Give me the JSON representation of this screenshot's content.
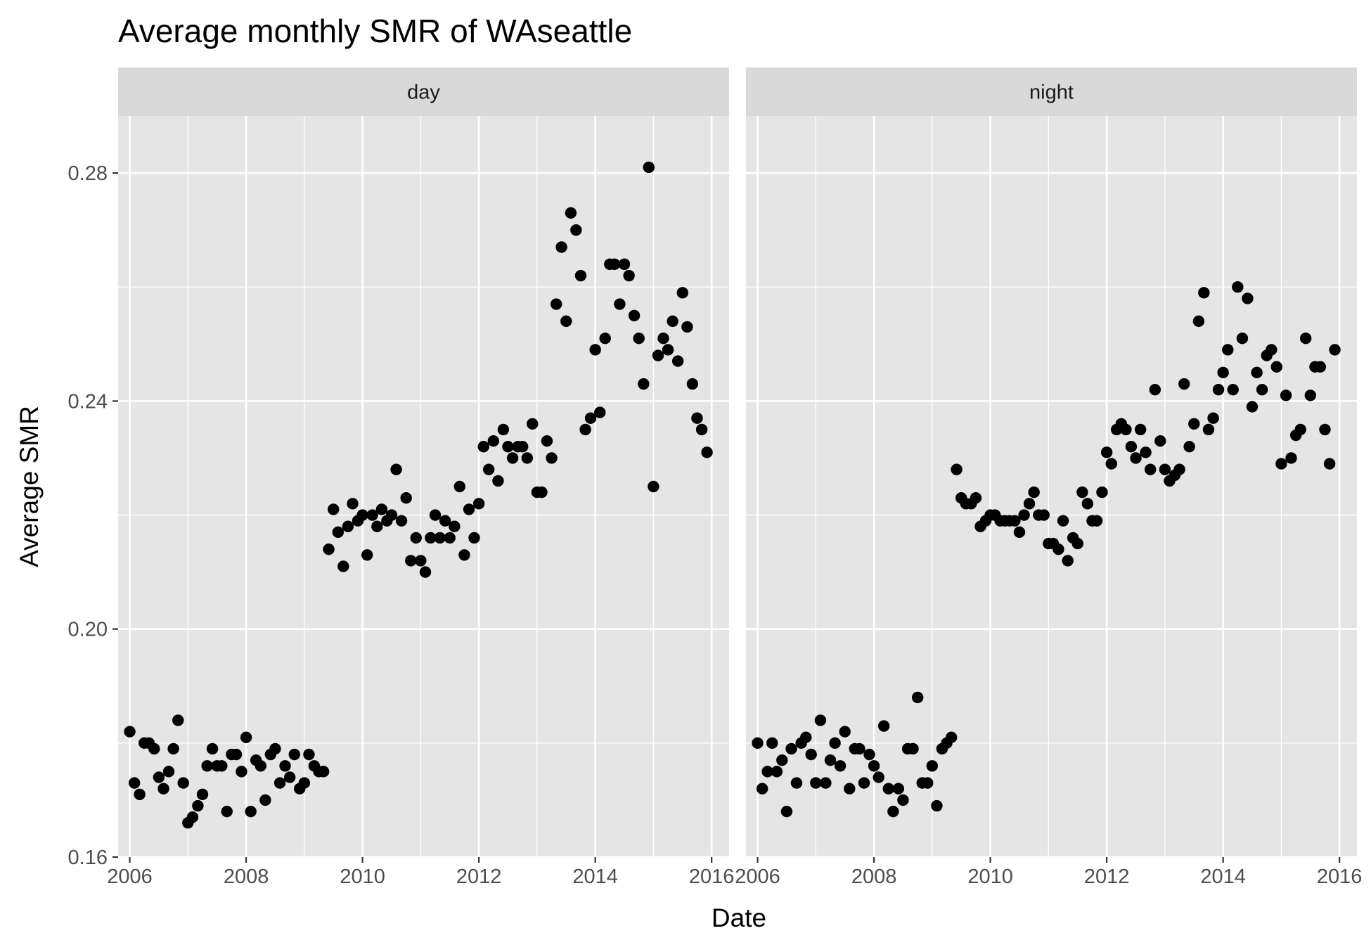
{
  "chart_data": {
    "type": "scatter",
    "title": "Average monthly SMR of WAseattle",
    "xlabel": "Date",
    "ylabel": "Average SMR",
    "xlim": [
      2005.8,
      2016.3
    ],
    "ylim": [
      0.16,
      0.29
    ],
    "x_ticks": [
      "2006",
      "2008",
      "2010",
      "2012",
      "2014",
      "2016"
    ],
    "y_ticks": [
      "0.16",
      "0.20",
      "0.24",
      "0.28"
    ],
    "grid": true,
    "facets": [
      {
        "name": "day",
        "points": [
          [
            2006.0,
            0.182
          ],
          [
            2006.08,
            0.173
          ],
          [
            2006.17,
            0.171
          ],
          [
            2006.25,
            0.18
          ],
          [
            2006.33,
            0.18
          ],
          [
            2006.42,
            0.179
          ],
          [
            2006.5,
            0.174
          ],
          [
            2006.58,
            0.172
          ],
          [
            2006.67,
            0.175
          ],
          [
            2006.75,
            0.179
          ],
          [
            2006.83,
            0.184
          ],
          [
            2006.92,
            0.173
          ],
          [
            2007.0,
            0.166
          ],
          [
            2007.08,
            0.167
          ],
          [
            2007.17,
            0.169
          ],
          [
            2007.25,
            0.171
          ],
          [
            2007.33,
            0.176
          ],
          [
            2007.42,
            0.179
          ],
          [
            2007.5,
            0.176
          ],
          [
            2007.58,
            0.176
          ],
          [
            2007.67,
            0.168
          ],
          [
            2007.75,
            0.178
          ],
          [
            2007.83,
            0.178
          ],
          [
            2007.92,
            0.175
          ],
          [
            2008.0,
            0.181
          ],
          [
            2008.08,
            0.168
          ],
          [
            2008.17,
            0.177
          ],
          [
            2008.25,
            0.176
          ],
          [
            2008.33,
            0.17
          ],
          [
            2008.42,
            0.178
          ],
          [
            2008.5,
            0.179
          ],
          [
            2008.58,
            0.173
          ],
          [
            2008.67,
            0.176
          ],
          [
            2008.75,
            0.174
          ],
          [
            2008.83,
            0.178
          ],
          [
            2008.92,
            0.172
          ],
          [
            2009.0,
            0.173
          ],
          [
            2009.08,
            0.178
          ],
          [
            2009.17,
            0.176
          ],
          [
            2009.25,
            0.175
          ],
          [
            2009.33,
            0.175
          ],
          [
            2009.42,
            0.214
          ],
          [
            2009.5,
            0.221
          ],
          [
            2009.58,
            0.217
          ],
          [
            2009.67,
            0.211
          ],
          [
            2009.75,
            0.218
          ],
          [
            2009.83,
            0.222
          ],
          [
            2009.92,
            0.219
          ],
          [
            2010.0,
            0.22
          ],
          [
            2010.08,
            0.213
          ],
          [
            2010.17,
            0.22
          ],
          [
            2010.25,
            0.218
          ],
          [
            2010.33,
            0.221
          ],
          [
            2010.42,
            0.219
          ],
          [
            2010.5,
            0.22
          ],
          [
            2010.58,
            0.228
          ],
          [
            2010.67,
            0.219
          ],
          [
            2010.75,
            0.223
          ],
          [
            2010.83,
            0.212
          ],
          [
            2010.92,
            0.216
          ],
          [
            2011.0,
            0.212
          ],
          [
            2011.08,
            0.21
          ],
          [
            2011.17,
            0.216
          ],
          [
            2011.25,
            0.22
          ],
          [
            2011.33,
            0.216
          ],
          [
            2011.42,
            0.219
          ],
          [
            2011.5,
            0.216
          ],
          [
            2011.58,
            0.218
          ],
          [
            2011.67,
            0.225
          ],
          [
            2011.75,
            0.213
          ],
          [
            2011.83,
            0.221
          ],
          [
            2011.92,
            0.216
          ],
          [
            2012.0,
            0.222
          ],
          [
            2012.08,
            0.232
          ],
          [
            2012.17,
            0.228
          ],
          [
            2012.25,
            0.233
          ],
          [
            2012.33,
            0.226
          ],
          [
            2012.42,
            0.235
          ],
          [
            2012.5,
            0.232
          ],
          [
            2012.58,
            0.23
          ],
          [
            2012.67,
            0.232
          ],
          [
            2012.75,
            0.232
          ],
          [
            2012.83,
            0.23
          ],
          [
            2012.92,
            0.236
          ],
          [
            2013.0,
            0.224
          ],
          [
            2013.08,
            0.224
          ],
          [
            2013.17,
            0.233
          ],
          [
            2013.25,
            0.23
          ],
          [
            2013.33,
            0.257
          ],
          [
            2013.42,
            0.267
          ],
          [
            2013.5,
            0.254
          ],
          [
            2013.58,
            0.273
          ],
          [
            2013.67,
            0.27
          ],
          [
            2013.75,
            0.262
          ],
          [
            2013.83,
            0.235
          ],
          [
            2013.92,
            0.237
          ],
          [
            2014.0,
            0.249
          ],
          [
            2014.08,
            0.238
          ],
          [
            2014.17,
            0.251
          ],
          [
            2014.25,
            0.264
          ],
          [
            2014.33,
            0.264
          ],
          [
            2014.42,
            0.257
          ],
          [
            2014.5,
            0.264
          ],
          [
            2014.58,
            0.262
          ],
          [
            2014.67,
            0.255
          ],
          [
            2014.75,
            0.251
          ],
          [
            2014.83,
            0.243
          ],
          [
            2014.92,
            0.281
          ],
          [
            2015.0,
            0.225
          ],
          [
            2015.08,
            0.248
          ],
          [
            2015.17,
            0.251
          ],
          [
            2015.25,
            0.249
          ],
          [
            2015.33,
            0.254
          ],
          [
            2015.42,
            0.247
          ],
          [
            2015.5,
            0.259
          ],
          [
            2015.58,
            0.253
          ],
          [
            2015.67,
            0.243
          ],
          [
            2015.75,
            0.237
          ],
          [
            2015.83,
            0.235
          ],
          [
            2015.92,
            0.231
          ]
        ]
      },
      {
        "name": "night",
        "points": [
          [
            2006.0,
            0.18
          ],
          [
            2006.08,
            0.172
          ],
          [
            2006.17,
            0.175
          ],
          [
            2006.25,
            0.18
          ],
          [
            2006.33,
            0.175
          ],
          [
            2006.42,
            0.177
          ],
          [
            2006.5,
            0.168
          ],
          [
            2006.58,
            0.179
          ],
          [
            2006.67,
            0.173
          ],
          [
            2006.75,
            0.18
          ],
          [
            2006.83,
            0.181
          ],
          [
            2006.92,
            0.178
          ],
          [
            2007.0,
            0.173
          ],
          [
            2007.08,
            0.184
          ],
          [
            2007.17,
            0.173
          ],
          [
            2007.25,
            0.177
          ],
          [
            2007.33,
            0.18
          ],
          [
            2007.42,
            0.176
          ],
          [
            2007.5,
            0.182
          ],
          [
            2007.58,
            0.172
          ],
          [
            2007.67,
            0.179
          ],
          [
            2007.75,
            0.179
          ],
          [
            2007.83,
            0.173
          ],
          [
            2007.92,
            0.178
          ],
          [
            2008.0,
            0.176
          ],
          [
            2008.08,
            0.174
          ],
          [
            2008.17,
            0.183
          ],
          [
            2008.25,
            0.172
          ],
          [
            2008.33,
            0.168
          ],
          [
            2008.42,
            0.172
          ],
          [
            2008.5,
            0.17
          ],
          [
            2008.58,
            0.179
          ],
          [
            2008.67,
            0.179
          ],
          [
            2008.75,
            0.188
          ],
          [
            2008.83,
            0.173
          ],
          [
            2008.92,
            0.173
          ],
          [
            2009.0,
            0.176
          ],
          [
            2009.08,
            0.169
          ],
          [
            2009.17,
            0.179
          ],
          [
            2009.25,
            0.18
          ],
          [
            2009.33,
            0.181
          ],
          [
            2009.42,
            0.228
          ],
          [
            2009.5,
            0.223
          ],
          [
            2009.58,
            0.222
          ],
          [
            2009.67,
            0.222
          ],
          [
            2009.75,
            0.223
          ],
          [
            2009.83,
            0.218
          ],
          [
            2009.92,
            0.219
          ],
          [
            2010.0,
            0.22
          ],
          [
            2010.08,
            0.22
          ],
          [
            2010.17,
            0.219
          ],
          [
            2010.25,
            0.219
          ],
          [
            2010.33,
            0.219
          ],
          [
            2010.42,
            0.219
          ],
          [
            2010.5,
            0.217
          ],
          [
            2010.58,
            0.22
          ],
          [
            2010.67,
            0.222
          ],
          [
            2010.75,
            0.224
          ],
          [
            2010.83,
            0.22
          ],
          [
            2010.92,
            0.22
          ],
          [
            2011.0,
            0.215
          ],
          [
            2011.08,
            0.215
          ],
          [
            2011.17,
            0.214
          ],
          [
            2011.25,
            0.219
          ],
          [
            2011.33,
            0.212
          ],
          [
            2011.42,
            0.216
          ],
          [
            2011.5,
            0.215
          ],
          [
            2011.58,
            0.224
          ],
          [
            2011.67,
            0.222
          ],
          [
            2011.75,
            0.219
          ],
          [
            2011.83,
            0.219
          ],
          [
            2011.92,
            0.224
          ],
          [
            2012.0,
            0.231
          ],
          [
            2012.08,
            0.229
          ],
          [
            2012.17,
            0.235
          ],
          [
            2012.25,
            0.236
          ],
          [
            2012.33,
            0.235
          ],
          [
            2012.42,
            0.232
          ],
          [
            2012.5,
            0.23
          ],
          [
            2012.58,
            0.235
          ],
          [
            2012.67,
            0.231
          ],
          [
            2012.75,
            0.228
          ],
          [
            2012.83,
            0.242
          ],
          [
            2012.92,
            0.233
          ],
          [
            2013.0,
            0.228
          ],
          [
            2013.08,
            0.226
          ],
          [
            2013.17,
            0.227
          ],
          [
            2013.25,
            0.228
          ],
          [
            2013.33,
            0.243
          ],
          [
            2013.42,
            0.232
          ],
          [
            2013.5,
            0.236
          ],
          [
            2013.58,
            0.254
          ],
          [
            2013.67,
            0.259
          ],
          [
            2013.75,
            0.235
          ],
          [
            2013.83,
            0.237
          ],
          [
            2013.92,
            0.242
          ],
          [
            2014.0,
            0.245
          ],
          [
            2014.08,
            0.249
          ],
          [
            2014.17,
            0.242
          ],
          [
            2014.25,
            0.26
          ],
          [
            2014.33,
            0.251
          ],
          [
            2014.42,
            0.258
          ],
          [
            2014.5,
            0.239
          ],
          [
            2014.58,
            0.245
          ],
          [
            2014.67,
            0.242
          ],
          [
            2014.75,
            0.248
          ],
          [
            2014.83,
            0.249
          ],
          [
            2014.92,
            0.246
          ],
          [
            2015.0,
            0.229
          ],
          [
            2015.08,
            0.241
          ],
          [
            2015.17,
            0.23
          ],
          [
            2015.25,
            0.234
          ],
          [
            2015.33,
            0.235
          ],
          [
            2015.42,
            0.251
          ],
          [
            2015.5,
            0.241
          ],
          [
            2015.58,
            0.246
          ],
          [
            2015.67,
            0.246
          ],
          [
            2015.75,
            0.235
          ],
          [
            2015.83,
            0.229
          ],
          [
            2015.92,
            0.249
          ]
        ]
      }
    ]
  }
}
